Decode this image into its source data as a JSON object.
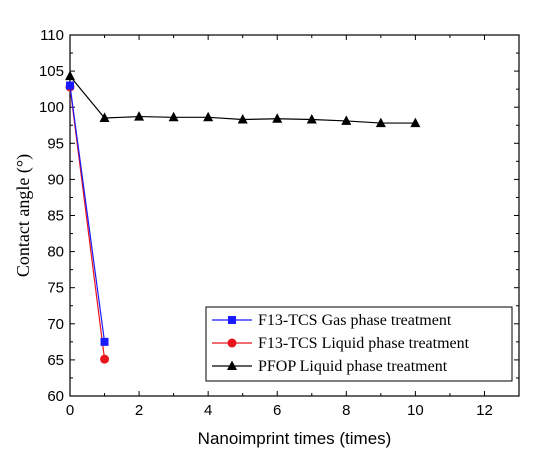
{
  "chart_data": {
    "type": "line",
    "xlabel": "Nanoimprint times (times)",
    "ylabel": "Contact angle (°)",
    "xlim": [
      0,
      13
    ],
    "ylim": [
      60,
      110
    ],
    "x_ticks": [
      0,
      2,
      4,
      6,
      8,
      10,
      12
    ],
    "y_ticks": [
      60,
      65,
      70,
      75,
      80,
      85,
      90,
      95,
      100,
      105,
      110
    ],
    "grid": false,
    "legend_position": "bottom-right",
    "series": [
      {
        "name": "F13-TCS Gas phase treatment",
        "color": "#1a1aff",
        "marker": "square",
        "x": [
          0,
          1
        ],
        "y": [
          103.0,
          67.5
        ]
      },
      {
        "name": "F13-TCS Liquid phase treatment",
        "color": "#e8161c",
        "marker": "circle",
        "x": [
          0,
          1
        ],
        "y": [
          102.8,
          65.1
        ]
      },
      {
        "name": "PFOP Liquid phase treatment",
        "color": "#000000",
        "marker": "triangle",
        "x": [
          0,
          1,
          2,
          3,
          4,
          5,
          6,
          7,
          8,
          9,
          10
        ],
        "y": [
          104.3,
          98.5,
          98.7,
          98.6,
          98.6,
          98.3,
          98.4,
          98.3,
          98.1,
          97.8,
          97.8
        ]
      }
    ]
  }
}
